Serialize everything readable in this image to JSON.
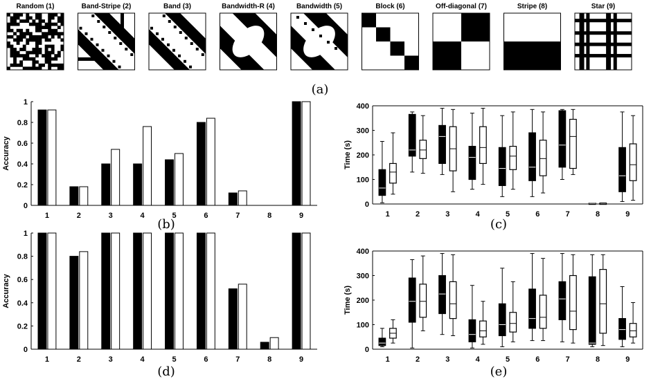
{
  "panel_a": {
    "label": "(a)",
    "thumbnails": [
      {
        "title": "Random (1)",
        "pattern": "random"
      },
      {
        "title": "Band-Stripe (2)",
        "pattern": "band-stripe"
      },
      {
        "title": "Band (3)",
        "pattern": "band"
      },
      {
        "title": "Bandwidth-R (4)",
        "pattern": "bandwidth-r"
      },
      {
        "title": "Bandwidth (5)",
        "pattern": "bandwidth"
      },
      {
        "title": "Block (6)",
        "pattern": "block"
      },
      {
        "title": "Off-diagonal (7)",
        "pattern": "off-diagonal"
      },
      {
        "title": "Stripe (8)",
        "pattern": "stripe"
      },
      {
        "title": "Star (9)",
        "pattern": "star"
      }
    ]
  },
  "colors": {
    "series_a": "#000000",
    "series_b": "#ffffff",
    "axis": "#000000"
  },
  "chart_data": [
    {
      "id": "b",
      "label": "(b)",
      "type": "bar",
      "ylabel": "Accuracy",
      "xlabel": "",
      "ylim": [
        0,
        1
      ],
      "yticks": [
        "0",
        "0.2",
        "0.4",
        "0.6",
        "0.8",
        "1"
      ],
      "categories": [
        "1",
        "2",
        "3",
        "4",
        "5",
        "6",
        "7",
        "8",
        "9"
      ],
      "series": [
        {
          "fill": "black",
          "values": [
            0.92,
            0.18,
            0.4,
            0.4,
            0.44,
            0.8,
            0.12,
            0.0,
            1.0
          ]
        },
        {
          "fill": "white",
          "values": [
            0.92,
            0.18,
            0.54,
            0.76,
            0.5,
            0.84,
            0.14,
            0.0,
            1.0
          ]
        }
      ]
    },
    {
      "id": "c",
      "label": "(c)",
      "type": "boxplot",
      "ylabel": "Time (s)",
      "xlabel": "",
      "ylim": [
        0,
        400
      ],
      "yticks": [
        "0",
        "100",
        "200",
        "300",
        "400"
      ],
      "categories": [
        "1",
        "2",
        "3",
        "4",
        "5",
        "6",
        "7",
        "8",
        "9"
      ],
      "series": [
        {
          "fill": "black",
          "boxes": [
            {
              "min": 5,
              "q1": 35,
              "median": 65,
              "q3": 140,
              "max": 255
            },
            {
              "min": 130,
              "q1": 195,
              "median": 220,
              "q3": 365,
              "max": 375
            },
            {
              "min": 120,
              "q1": 165,
              "median": 275,
              "q3": 320,
              "max": 390
            },
            {
              "min": 60,
              "q1": 100,
              "median": 190,
              "q3": 235,
              "max": 370
            },
            {
              "min": 30,
              "q1": 75,
              "median": 145,
              "q3": 230,
              "max": 360
            },
            {
              "min": 30,
              "q1": 95,
              "median": 150,
              "q3": 290,
              "max": 385
            },
            {
              "min": 100,
              "q1": 150,
              "median": 240,
              "q3": 380,
              "max": 385
            },
            {
              "min": 3,
              "q1": 3,
              "median": 3,
              "q3": 4,
              "max": 4
            },
            {
              "min": 10,
              "q1": 50,
              "median": 115,
              "q3": 230,
              "max": 375
            }
          ]
        },
        {
          "fill": "white",
          "boxes": [
            {
              "min": 40,
              "q1": 85,
              "median": 130,
              "q3": 165,
              "max": 290
            },
            {
              "min": 125,
              "q1": 185,
              "median": 220,
              "q3": 260,
              "max": 360
            },
            {
              "min": 50,
              "q1": 135,
              "median": 225,
              "q3": 315,
              "max": 385
            },
            {
              "min": 80,
              "q1": 165,
              "median": 230,
              "q3": 315,
              "max": 390
            },
            {
              "min": 60,
              "q1": 140,
              "median": 195,
              "q3": 235,
              "max": 375
            },
            {
              "min": 45,
              "q1": 115,
              "median": 185,
              "q3": 260,
              "max": 375
            },
            {
              "min": 120,
              "q1": 145,
              "median": 275,
              "q3": 345,
              "max": 385
            },
            {
              "min": 3,
              "q1": 3,
              "median": 3,
              "q3": 4,
              "max": 4
            },
            {
              "min": 15,
              "q1": 95,
              "median": 160,
              "q3": 245,
              "max": 360
            }
          ]
        }
      ]
    },
    {
      "id": "d",
      "label": "(d)",
      "type": "bar",
      "ylabel": "Accuracy",
      "xlabel": "",
      "ylim": [
        0,
        1
      ],
      "yticks": [
        "0",
        "0.2",
        "0.4",
        "0.6",
        "0.8",
        "1"
      ],
      "categories": [
        "1",
        "2",
        "3",
        "4",
        "5",
        "6",
        "7",
        "8",
        "9"
      ],
      "series": [
        {
          "fill": "black",
          "values": [
            1.0,
            0.8,
            1.0,
            1.0,
            1.0,
            1.0,
            0.52,
            0.06,
            1.0
          ]
        },
        {
          "fill": "white",
          "values": [
            1.0,
            0.84,
            1.0,
            1.0,
            1.0,
            1.0,
            0.56,
            0.1,
            1.0
          ]
        }
      ]
    },
    {
      "id": "e",
      "label": "(e)",
      "type": "boxplot",
      "ylabel": "Time (s)",
      "xlabel": "",
      "ylim": [
        0,
        400
      ],
      "yticks": [
        "0",
        "100",
        "200",
        "300",
        "400"
      ],
      "categories": [
        "1",
        "2",
        "3",
        "4",
        "5",
        "6",
        "7",
        "8",
        "9"
      ],
      "series": [
        {
          "fill": "black",
          "boxes": [
            {
              "min": 10,
              "q1": 15,
              "median": 25,
              "q3": 45,
              "max": 85
            },
            {
              "min": 5,
              "q1": 110,
              "median": 195,
              "q3": 290,
              "max": 365
            },
            {
              "min": 60,
              "q1": 145,
              "median": 225,
              "q3": 300,
              "max": 390
            },
            {
              "min": 5,
              "q1": 30,
              "median": 60,
              "q3": 120,
              "max": 260
            },
            {
              "min": 10,
              "q1": 55,
              "median": 100,
              "q3": 185,
              "max": 330
            },
            {
              "min": 35,
              "q1": 85,
              "median": 125,
              "q3": 245,
              "max": 390
            },
            {
              "min": 30,
              "q1": 120,
              "median": 205,
              "q3": 275,
              "max": 390
            },
            {
              "min": 10,
              "q1": 20,
              "median": 25,
              "q3": 295,
              "max": 385
            },
            {
              "min": 10,
              "q1": 40,
              "median": 80,
              "q3": 125,
              "max": 255
            }
          ]
        },
        {
          "fill": "white",
          "boxes": [
            {
              "min": 25,
              "q1": 45,
              "median": 65,
              "q3": 85,
              "max": 120
            },
            {
              "min": 75,
              "q1": 130,
              "median": 195,
              "q3": 265,
              "max": 380
            },
            {
              "min": 55,
              "q1": 125,
              "median": 185,
              "q3": 275,
              "max": 385
            },
            {
              "min": 20,
              "q1": 50,
              "median": 75,
              "q3": 115,
              "max": 195
            },
            {
              "min": 30,
              "q1": 70,
              "median": 105,
              "q3": 150,
              "max": 275
            },
            {
              "min": 35,
              "q1": 85,
              "median": 130,
              "q3": 220,
              "max": 370
            },
            {
              "min": 25,
              "q1": 80,
              "median": 155,
              "q3": 300,
              "max": 385
            },
            {
              "min": 15,
              "q1": 65,
              "median": 185,
              "q3": 325,
              "max": 385
            },
            {
              "min": 25,
              "q1": 50,
              "median": 75,
              "q3": 105,
              "max": 190
            }
          ]
        }
      ]
    }
  ]
}
